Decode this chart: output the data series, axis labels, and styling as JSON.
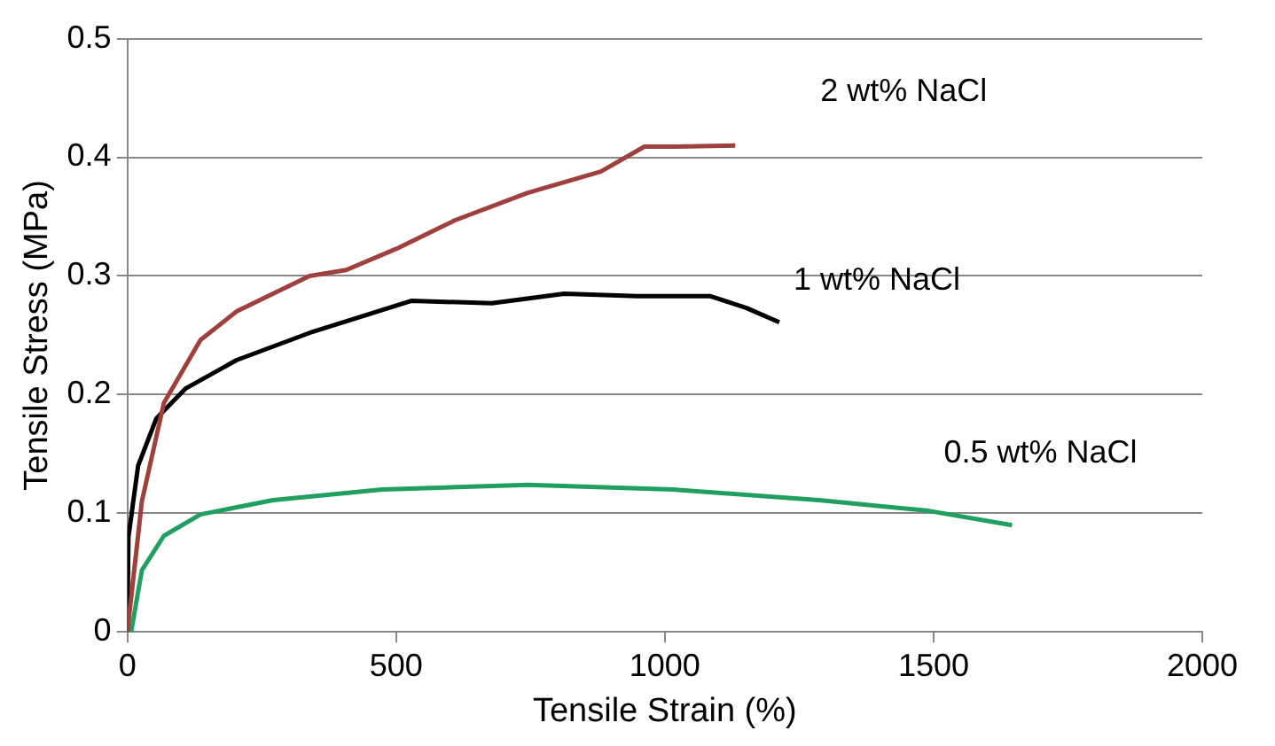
{
  "chart_data": {
    "type": "line",
    "xlabel": "Tensile Strain (%)",
    "ylabel": "Tensile Stress (MPa)",
    "xlim": [
      0,
      2000
    ],
    "xticks": [
      0,
      500,
      1000,
      1500,
      2000
    ],
    "ylim": [
      0,
      0.5
    ],
    "yticks": [
      0,
      0.1,
      0.2,
      0.3,
      0.4,
      0.5
    ],
    "grid": "y",
    "legend": false,
    "marker": "none",
    "series": [
      {
        "name": "2 wt% NaCl",
        "color": "#a0403c",
        "x": [
          0,
          27,
          68,
          136,
          203,
          339,
          407,
          501,
          610,
          745,
          881,
          962,
          1016,
          1131
        ],
        "values": [
          0,
          0.11,
          0.193,
          0.246,
          0.27,
          0.3,
          0.305,
          0.323,
          0.347,
          0.37,
          0.388,
          0.409,
          0.409,
          0.41
        ]
      },
      {
        "name": "1 wt% NaCl",
        "color": "#000000",
        "x": [
          0,
          2,
          20,
          54,
          108,
          203,
          339,
          528,
          678,
          813,
          949,
          1084,
          1152,
          1213
        ],
        "values": [
          0,
          0.08,
          0.14,
          0.18,
          0.205,
          0.229,
          0.252,
          0.279,
          0.277,
          0.285,
          0.283,
          0.283,
          0.273,
          0.261
        ]
      },
      {
        "name": "0.5 wt% NaCl",
        "color": "#20a060",
        "x": [
          7,
          27,
          68,
          136,
          271,
          474,
          745,
          1016,
          1287,
          1491,
          1646
        ],
        "values": [
          0,
          0.052,
          0.081,
          0.099,
          0.111,
          0.12,
          0.124,
          0.12,
          0.111,
          0.102,
          0.09
        ]
      }
    ]
  }
}
